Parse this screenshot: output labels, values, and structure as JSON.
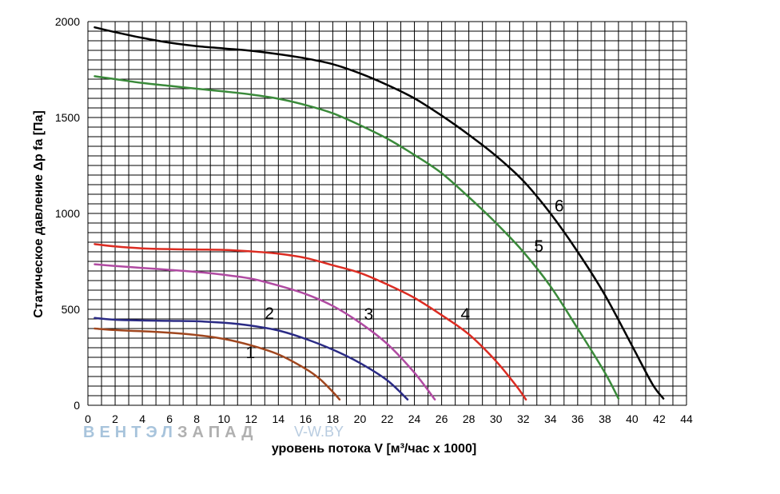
{
  "chart_data": {
    "type": "line",
    "ylabel": "Статическое давление  Δp fa [Па]",
    "xlabel": "уровень потока  V [м³/час x 1000]",
    "xlim": [
      0,
      44
    ],
    "ylim": [
      0,
      2000
    ],
    "x_ticks": [
      "0",
      "2",
      "4",
      "6",
      "8",
      "10",
      "12",
      "14",
      "16",
      "18",
      "20",
      "22",
      "24",
      "26",
      "28",
      "30",
      "32",
      "34",
      "36",
      "38",
      "40",
      "42",
      "44"
    ],
    "y_ticks": [
      "0",
      "500",
      "1000",
      "1500",
      "2000"
    ],
    "grid": true,
    "watermark": {
      "part1": "ВЕНТЭЛ",
      "part2": "ЗАПАД",
      "site": "V-W.BY"
    },
    "series": [
      {
        "name": "1",
        "color": "#a0461e",
        "label_pos": [
          11.6,
          245
        ],
        "points": [
          [
            0.5,
            400
          ],
          [
            2,
            392
          ],
          [
            4,
            386
          ],
          [
            6,
            378
          ],
          [
            8,
            366
          ],
          [
            10,
            346
          ],
          [
            12,
            312
          ],
          [
            14,
            265
          ],
          [
            16,
            190
          ],
          [
            17,
            140
          ],
          [
            18,
            70
          ],
          [
            18.5,
            30
          ]
        ]
      },
      {
        "name": "2",
        "color": "#2b2b85",
        "label_pos": [
          13,
          450
        ],
        "points": [
          [
            0.5,
            455
          ],
          [
            2,
            446
          ],
          [
            4,
            442
          ],
          [
            6,
            440
          ],
          [
            8,
            438
          ],
          [
            10,
            430
          ],
          [
            12,
            415
          ],
          [
            14,
            390
          ],
          [
            16,
            346
          ],
          [
            18,
            290
          ],
          [
            20,
            220
          ],
          [
            22,
            130
          ],
          [
            23.5,
            30
          ]
        ]
      },
      {
        "name": "3",
        "color": "#b04aa2",
        "label_pos": [
          20.3,
          445
        ],
        "points": [
          [
            0.5,
            735
          ],
          [
            2,
            726
          ],
          [
            4,
            716
          ],
          [
            6,
            706
          ],
          [
            8,
            695
          ],
          [
            10,
            680
          ],
          [
            12,
            660
          ],
          [
            14,
            624
          ],
          [
            16,
            580
          ],
          [
            18,
            518
          ],
          [
            20,
            430
          ],
          [
            22,
            320
          ],
          [
            24,
            170
          ],
          [
            25.5,
            30
          ]
        ]
      },
      {
        "name": "4",
        "color": "#dc2c22",
        "label_pos": [
          27.4,
          445
        ],
        "points": [
          [
            0.5,
            840
          ],
          [
            2,
            828
          ],
          [
            4,
            818
          ],
          [
            6,
            814
          ],
          [
            8,
            812
          ],
          [
            10,
            810
          ],
          [
            12,
            802
          ],
          [
            14,
            790
          ],
          [
            16,
            768
          ],
          [
            18,
            730
          ],
          [
            20,
            690
          ],
          [
            22,
            630
          ],
          [
            24,
            560
          ],
          [
            26,
            470
          ],
          [
            28,
            370
          ],
          [
            30,
            230
          ],
          [
            31.5,
            100
          ],
          [
            32.2,
            30
          ]
        ]
      },
      {
        "name": "5",
        "color": "#3a8a3a",
        "label_pos": [
          32.8,
          800
        ],
        "points": [
          [
            0.5,
            1715
          ],
          [
            2,
            1700
          ],
          [
            4,
            1680
          ],
          [
            6,
            1665
          ],
          [
            8,
            1650
          ],
          [
            10,
            1636
          ],
          [
            12,
            1620
          ],
          [
            14,
            1598
          ],
          [
            16,
            1565
          ],
          [
            18,
            1522
          ],
          [
            20,
            1460
          ],
          [
            22,
            1390
          ],
          [
            24,
            1305
          ],
          [
            26,
            1210
          ],
          [
            28,
            1085
          ],
          [
            30,
            950
          ],
          [
            32,
            800
          ],
          [
            34,
            620
          ],
          [
            36,
            400
          ],
          [
            38,
            170
          ],
          [
            39,
            35
          ]
        ]
      },
      {
        "name": "6",
        "color": "#000000",
        "label_pos": [
          34.3,
          1010
        ],
        "points": [
          [
            0.5,
            1970
          ],
          [
            2,
            1945
          ],
          [
            4,
            1915
          ],
          [
            6,
            1890
          ],
          [
            8,
            1872
          ],
          [
            10,
            1860
          ],
          [
            12,
            1848
          ],
          [
            14,
            1830
          ],
          [
            16,
            1808
          ],
          [
            18,
            1778
          ],
          [
            20,
            1730
          ],
          [
            22,
            1670
          ],
          [
            24,
            1600
          ],
          [
            26,
            1510
          ],
          [
            28,
            1410
          ],
          [
            30,
            1300
          ],
          [
            32,
            1170
          ],
          [
            34,
            1000
          ],
          [
            36,
            800
          ],
          [
            38,
            575
          ],
          [
            40,
            310
          ],
          [
            41.5,
            110
          ],
          [
            42.3,
            35
          ]
        ]
      }
    ]
  }
}
